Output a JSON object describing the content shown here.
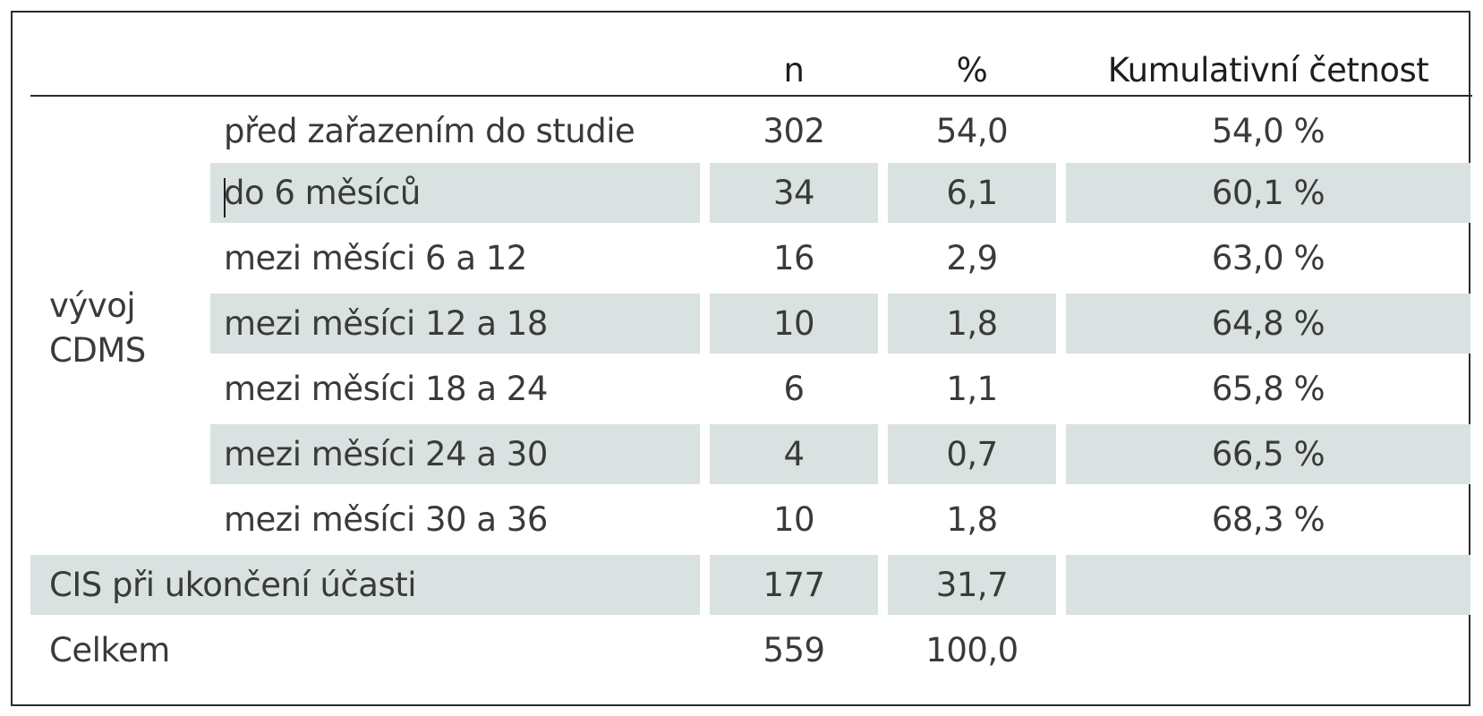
{
  "table": {
    "headers": {
      "col_label": "",
      "col_sublabel": "",
      "col_n": "n",
      "col_pct": "%",
      "col_cum": "Kumulativní četnost"
    },
    "group_label_line1": "vývoj",
    "group_label_line2": "CDMS",
    "rows": [
      {
        "label": "před zařazením do studie",
        "n": "302",
        "pct": "54,0",
        "cum": "54,0 %"
      },
      {
        "label": "do 6 měsíců",
        "n": "34",
        "pct": "6,1",
        "cum": "60,1 %"
      },
      {
        "label": "mezi měsíci 6 a 12",
        "n": "16",
        "pct": "2,9",
        "cum": "63,0 %"
      },
      {
        "label": "mezi měsíci 12 a 18",
        "n": "10",
        "pct": "1,8",
        "cum": "64,8 %"
      },
      {
        "label": "mezi měsíci 18 a 24",
        "n": "6",
        "pct": "1,1",
        "cum": "65,8 %"
      },
      {
        "label": "mezi měsíci 24 a 30",
        "n": "4",
        "pct": "0,7",
        "cum": "66,5 %"
      },
      {
        "label": "mezi měsíci 30 a 36",
        "n": "10",
        "pct": "1,8",
        "cum": "68,3 %"
      }
    ],
    "cis_row": {
      "label": "CIS při ukončení účasti",
      "n": "177",
      "pct": "31,7",
      "cum": ""
    },
    "total_row": {
      "label": "Celkem",
      "n": "559",
      "pct": "100,0",
      "cum": ""
    }
  },
  "colors": {
    "shade": "#d9e1e1",
    "text": "#3a3a3a",
    "border": "#2b2b2b"
  }
}
